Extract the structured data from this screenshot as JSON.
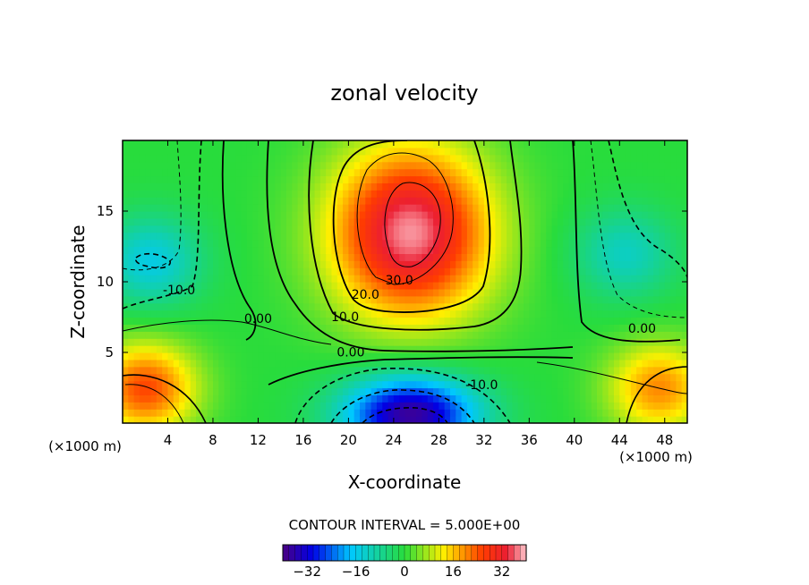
{
  "chart_data": {
    "type": "heatmap",
    "title": "zonal velocity",
    "xlabel": "X-coordinate",
    "ylabel": "Z-coordinate",
    "x_unit_left": "(×1000 m)",
    "x_unit_right": "(×1000 m)",
    "xlim": [
      0,
      50
    ],
    "ylim": [
      0,
      20
    ],
    "x_ticks": [
      4,
      8,
      12,
      16,
      20,
      24,
      28,
      32,
      36,
      40,
      44,
      48
    ],
    "y_ticks": [
      5,
      10,
      15
    ],
    "contour_interval_text": "CONTOUR INTERVAL = 5.000E+00",
    "contour_interval": 5,
    "contour_labels": [
      {
        "text": "30.0",
        "x": 24.5,
        "y": 9.8
      },
      {
        "text": "20.0",
        "x": 21.5,
        "y": 8.8
      },
      {
        "text": "10.0",
        "x": 19.7,
        "y": 7.2
      },
      {
        "text": "0.00",
        "x": 12.0,
        "y": 7.1
      },
      {
        "text": "0.00",
        "x": 20.2,
        "y": 4.7
      },
      {
        "text": "-10.0",
        "x": 5.0,
        "y": 9.1
      },
      {
        "text": "-10.0",
        "x": 31.8,
        "y": 2.4
      },
      {
        "text": "0.00",
        "x": 46.0,
        "y": 6.4
      }
    ],
    "features": [
      {
        "name": "jet maximum",
        "x": 25.5,
        "y": 13.5,
        "value": 38
      },
      {
        "name": "near-surface minimum",
        "x": 25.5,
        "y": 0.6,
        "value": -38
      },
      {
        "name": "upper-left minimum",
        "x": 2.5,
        "y": 11.5,
        "value": -15
      },
      {
        "name": "upper-right minimum",
        "x": 44.5,
        "y": 12.0,
        "value": -12
      },
      {
        "name": "lower-left maximum",
        "x": 2.0,
        "y": 2.5,
        "value": 25
      },
      {
        "name": "lower-right maximum",
        "x": 47.5,
        "y": 2.5,
        "value": 20
      }
    ],
    "colorbar": {
      "ticks": [
        -32,
        -16,
        0,
        16,
        32
      ],
      "tick_labels": [
        "−32",
        "−16",
        "0",
        "16",
        "32"
      ],
      "range": [
        -40,
        40
      ]
    }
  }
}
